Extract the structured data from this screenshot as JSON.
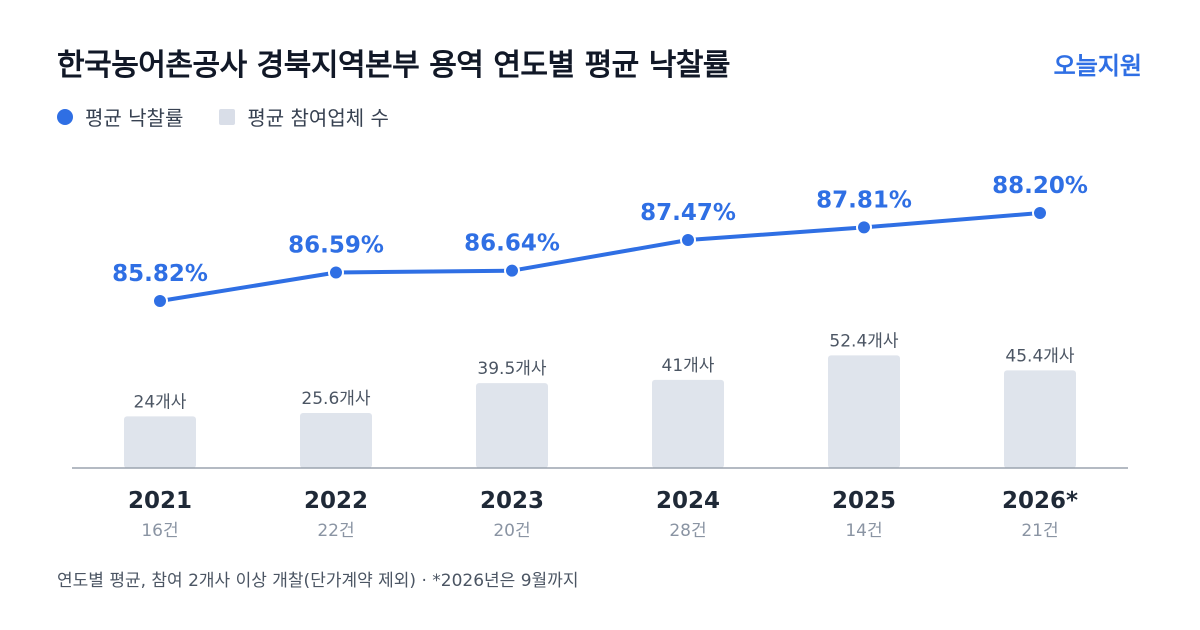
{
  "title": "한국농어촌공사 경북지역본부 용역 연도별 평균 낙찰률",
  "brand": "오늘지원",
  "legend": {
    "rate_label": "평균 낙찰률",
    "bidders_label": "평균 참여업체 수"
  },
  "footnote": "연도별 평균, 참여 2개사 이상 개찰(단가계약 제외) · *2026년은 9월까지",
  "colors": {
    "line": "#2f6fe4",
    "bar": "#dfe4ec",
    "bar_label": "#4b5563",
    "year": "#1f2937",
    "count": "#8a94a3",
    "axis": "#9ca3af"
  },
  "chart_data": {
    "type": "bar+line",
    "categories": [
      "2021",
      "2022",
      "2023",
      "2024",
      "2025",
      "2026*"
    ],
    "counts": [
      "16건",
      "22건",
      "20건",
      "28건",
      "14건",
      "21건"
    ],
    "series": [
      {
        "name": "평균 낙찰률",
        "type": "line",
        "values": [
          85.82,
          86.59,
          86.64,
          87.47,
          87.81,
          88.2
        ],
        "labels": [
          "85.82%",
          "86.59%",
          "86.64%",
          "87.47%",
          "87.81%",
          "88.20%"
        ]
      },
      {
        "name": "평균 참여업체 수",
        "type": "bar",
        "values": [
          24,
          25.6,
          39.5,
          41,
          52.4,
          45.4
        ],
        "labels": [
          "24개사",
          "25.6개사",
          "39.5개사",
          "41개사",
          "52.4개사",
          "45.4개사"
        ]
      }
    ]
  }
}
